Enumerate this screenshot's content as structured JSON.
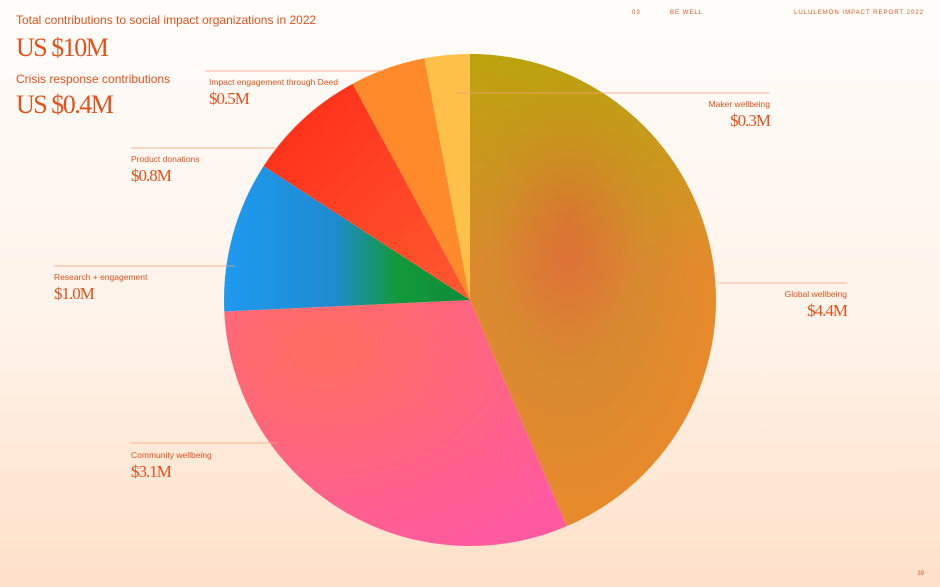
{
  "header": {
    "section_number": "03",
    "section_name": "BE WELL",
    "report_title": "LULULEMON IMPACT REPORT 2022"
  },
  "summary": {
    "total_label": "Total contributions to social impact organizations in 2022",
    "total_value": "US $10M",
    "crisis_label": "Crisis response contributions",
    "crisis_value": "US $0.4M"
  },
  "page_number": "39",
  "chart_data": {
    "type": "pie",
    "title": "",
    "slices": [
      {
        "label": "Global wellbeing",
        "value": 4.4,
        "display": "$4.4M",
        "color": "#e8892e"
      },
      {
        "label": "Community wellbeing",
        "value": 3.1,
        "display": "$3.1M",
        "color": "#ff5c8a"
      },
      {
        "label": "Research + engagement",
        "value": 1.0,
        "display": "$1.0M",
        "color": "#1d9a4a"
      },
      {
        "label": "Product donations",
        "value": 0.8,
        "display": "$0.8M",
        "color": "#ff3a1e"
      },
      {
        "label": "Impact engagement through Deed",
        "value": 0.5,
        "display": "$0.5M",
        "color": "#ff8a2a"
      },
      {
        "label": "Maker wellbeing",
        "value": 0.3,
        "display": "$0.3M",
        "color": "#ffc04a"
      }
    ]
  }
}
